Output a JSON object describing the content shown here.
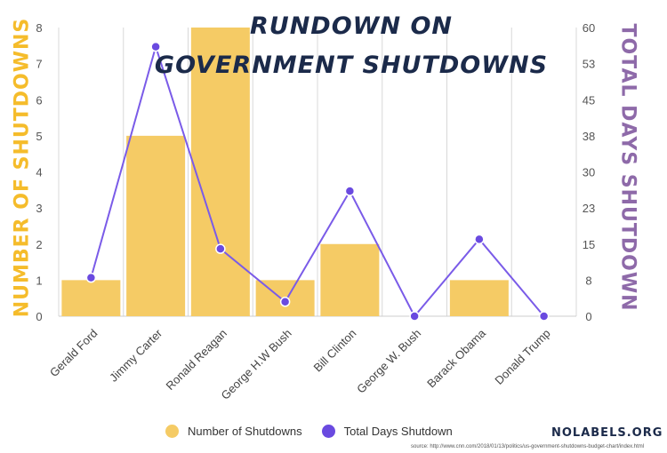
{
  "chart_data": {
    "type": "bar",
    "title_line1": "RUNDOWN ON",
    "title_line2": "GOVERNMENT SHUTDOWNS",
    "categories": [
      "Gerald Ford",
      "Jimmy Carter",
      "Ronald Reagan",
      "George H.W Bush",
      "Bill Clinton",
      "George W. Bush",
      "Barack Obama",
      "Donald Trump"
    ],
    "series": [
      {
        "name": "Number of Shutdowns",
        "type": "bar",
        "axis": "left",
        "color": "#f5cb65",
        "values": [
          1,
          5,
          8,
          1,
          2,
          0,
          1,
          0
        ]
      },
      {
        "name": "Total Days Shutdown",
        "type": "line",
        "axis": "right",
        "color": "#6a4ae0",
        "values": [
          8,
          56,
          14,
          3,
          26,
          0,
          16,
          0
        ]
      }
    ],
    "ylabel_left": "NUMBER OF SHUTDOWNS",
    "ylabel_right": "TOTAL DAYS SHUTDOWN",
    "ylim_left": [
      0,
      8
    ],
    "ylim_right": [
      0,
      60
    ],
    "yticks_left": [
      "0",
      "1",
      "2",
      "3",
      "4",
      "5",
      "6",
      "7",
      "8"
    ],
    "yticks_right": [
      "0",
      "8",
      "15",
      "23",
      "30",
      "38",
      "45",
      "53",
      "60"
    ],
    "grid": "vertical",
    "legend_position": "bottom"
  },
  "footer": {
    "brand": "NOLABELS.ORG",
    "source": "source: http://www.cnn.com/2018/01/13/politics/us-government-shutdowns-budget-chart/index.html"
  }
}
